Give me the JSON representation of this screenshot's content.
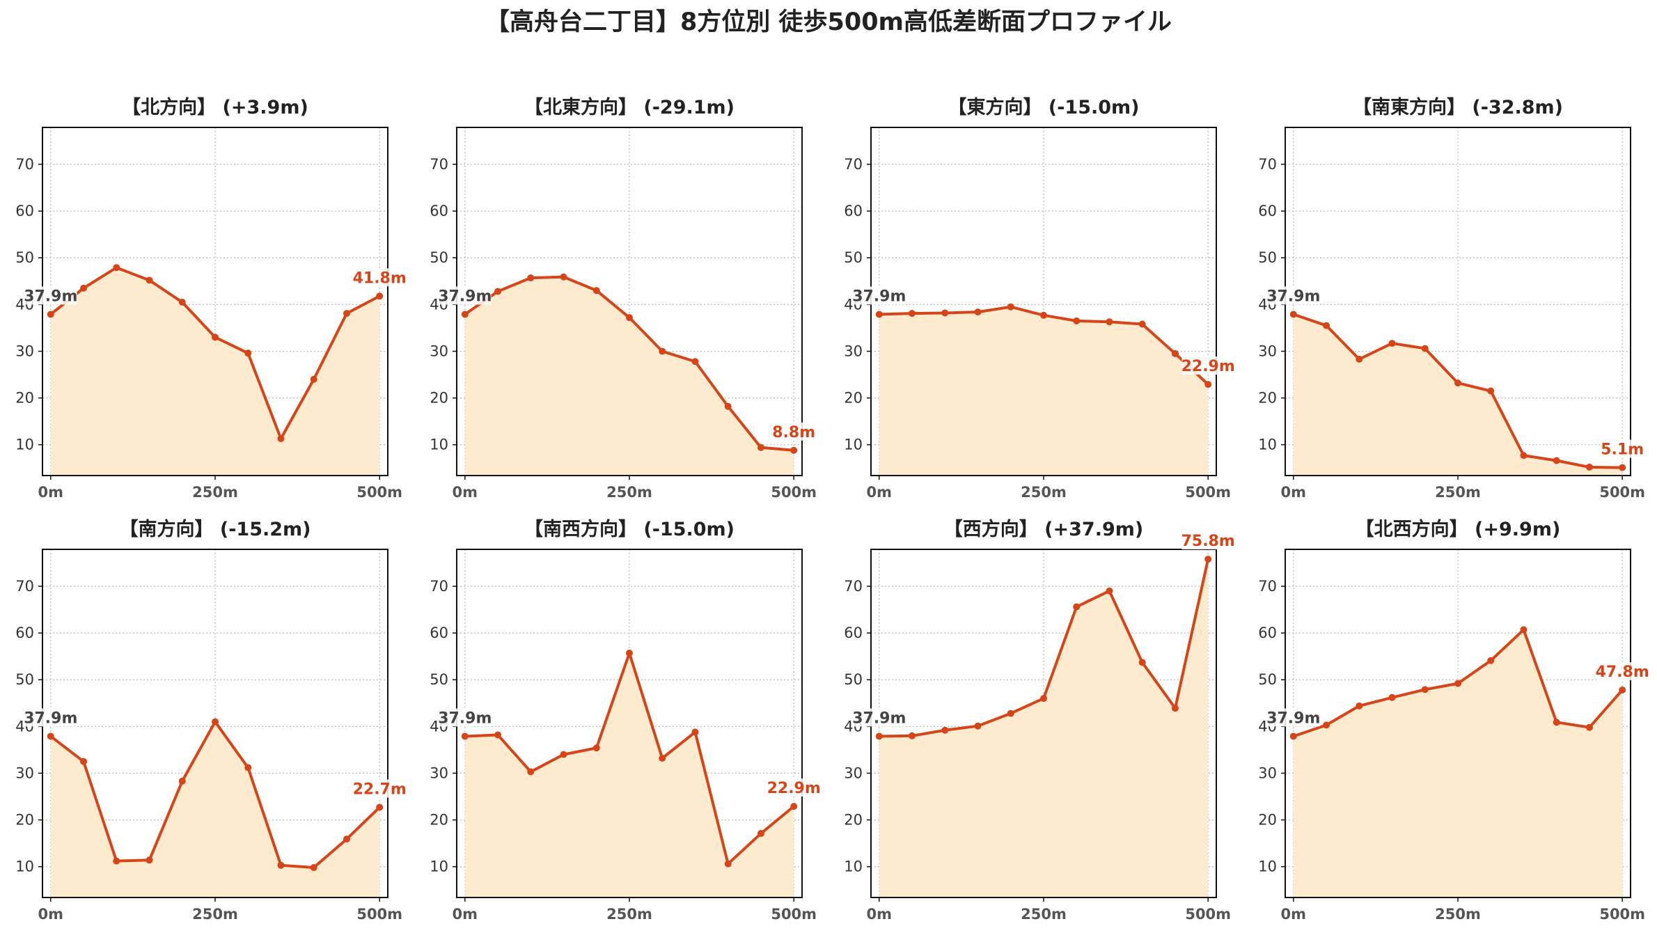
{
  "title": "【高舟台二丁目】8方位別 徒歩500m高低差断面プロファイル",
  "colors": {
    "line": "#d64518",
    "fill": "#fdebd0",
    "grid": "#bbbbbb",
    "start_label": "#444444",
    "end_label": "#d64518"
  },
  "chart_data": [
    {
      "type": "area",
      "title": "【北方向】 (+3.9m)",
      "start_label": "37.9m",
      "end_label": "41.8m",
      "x": [
        0,
        50,
        100,
        150,
        200,
        250,
        300,
        350,
        400,
        450,
        500
      ],
      "y": [
        37.9,
        43.5,
        47.9,
        45.2,
        40.5,
        33.0,
        29.6,
        11.3,
        24.0,
        38.1,
        41.8
      ],
      "xticks": [
        "0m",
        "250m",
        "500m"
      ],
      "yticks": [
        10,
        20,
        30,
        40,
        50,
        60,
        70
      ],
      "ylim": [
        3.4,
        77.9
      ],
      "grid": true
    },
    {
      "type": "area",
      "title": "【北東方向】 (-29.1m)",
      "start_label": "37.9m",
      "end_label": "8.8m",
      "x": [
        0,
        50,
        100,
        150,
        200,
        250,
        300,
        350,
        400,
        450,
        500
      ],
      "y": [
        37.9,
        42.8,
        45.7,
        45.9,
        43.0,
        37.2,
        30.0,
        27.8,
        18.2,
        9.4,
        8.8
      ],
      "xticks": [
        "0m",
        "250m",
        "500m"
      ],
      "yticks": [
        10,
        20,
        30,
        40,
        50,
        60,
        70
      ],
      "ylim": [
        3.4,
        77.9
      ],
      "grid": true
    },
    {
      "type": "area",
      "title": "【東方向】 (-15.0m)",
      "start_label": "37.9m",
      "end_label": "22.9m",
      "x": [
        0,
        50,
        100,
        150,
        200,
        250,
        300,
        350,
        400,
        450,
        500
      ],
      "y": [
        37.9,
        38.1,
        38.2,
        38.4,
        39.5,
        37.7,
        36.5,
        36.3,
        35.8,
        29.5,
        22.9
      ],
      "xticks": [
        "0m",
        "250m",
        "500m"
      ],
      "yticks": [
        10,
        20,
        30,
        40,
        50,
        60,
        70
      ],
      "ylim": [
        3.4,
        77.9
      ],
      "grid": true
    },
    {
      "type": "area",
      "title": "【南東方向】 (-32.8m)",
      "start_label": "37.9m",
      "end_label": "5.1m",
      "x": [
        0,
        50,
        100,
        150,
        200,
        250,
        300,
        350,
        400,
        450,
        500
      ],
      "y": [
        37.9,
        35.5,
        28.3,
        31.7,
        30.6,
        23.2,
        21.5,
        7.7,
        6.6,
        5.2,
        5.1
      ],
      "xticks": [
        "0m",
        "250m",
        "500m"
      ],
      "yticks": [
        10,
        20,
        30,
        40,
        50,
        60,
        70
      ],
      "ylim": [
        3.4,
        77.9
      ],
      "grid": true
    },
    {
      "type": "area",
      "title": "【南方向】 (-15.2m)",
      "start_label": "37.9m",
      "end_label": "22.7m",
      "x": [
        0,
        50,
        100,
        150,
        200,
        250,
        300,
        350,
        400,
        450,
        500
      ],
      "y": [
        37.9,
        32.5,
        11.2,
        11.4,
        28.3,
        41.0,
        31.2,
        10.3,
        9.8,
        15.9,
        22.7
      ],
      "xticks": [
        "0m",
        "250m",
        "500m"
      ],
      "yticks": [
        10,
        20,
        30,
        40,
        50,
        60,
        70
      ],
      "ylim": [
        3.4,
        77.9
      ],
      "grid": true
    },
    {
      "type": "area",
      "title": "【南西方向】 (-15.0m)",
      "start_label": "37.9m",
      "end_label": "22.9m",
      "x": [
        0,
        50,
        100,
        150,
        200,
        250,
        300,
        350,
        400,
        450,
        500
      ],
      "y": [
        37.9,
        38.2,
        30.3,
        34.0,
        35.4,
        55.7,
        33.2,
        38.8,
        10.6,
        17.1,
        22.9
      ],
      "xticks": [
        "0m",
        "250m",
        "500m"
      ],
      "yticks": [
        10,
        20,
        30,
        40,
        50,
        60,
        70
      ],
      "ylim": [
        3.4,
        77.9
      ],
      "grid": true
    },
    {
      "type": "area",
      "title": "【西方向】 (+37.9m)",
      "start_label": "37.9m",
      "end_label": "75.8m",
      "x": [
        0,
        50,
        100,
        150,
        200,
        250,
        300,
        350,
        400,
        450,
        500
      ],
      "y": [
        37.9,
        38.0,
        39.2,
        40.1,
        42.8,
        46.0,
        65.6,
        69.0,
        53.7,
        43.9,
        75.8
      ],
      "xticks": [
        "0m",
        "250m",
        "500m"
      ],
      "yticks": [
        10,
        20,
        30,
        40,
        50,
        60,
        70
      ],
      "ylim": [
        3.4,
        77.9
      ],
      "grid": true
    },
    {
      "type": "area",
      "title": "【北西方向】 (+9.9m)",
      "start_label": "37.9m",
      "end_label": "47.8m",
      "x": [
        0,
        50,
        100,
        150,
        200,
        250,
        300,
        350,
        400,
        450,
        500
      ],
      "y": [
        37.9,
        40.3,
        44.4,
        46.2,
        47.9,
        49.2,
        54.1,
        60.7,
        40.9,
        39.8,
        47.8
      ],
      "xticks": [
        "0m",
        "250m",
        "500m"
      ],
      "yticks": [
        10,
        20,
        30,
        40,
        50,
        60,
        70
      ],
      "ylim": [
        3.4,
        77.9
      ],
      "grid": true
    }
  ]
}
